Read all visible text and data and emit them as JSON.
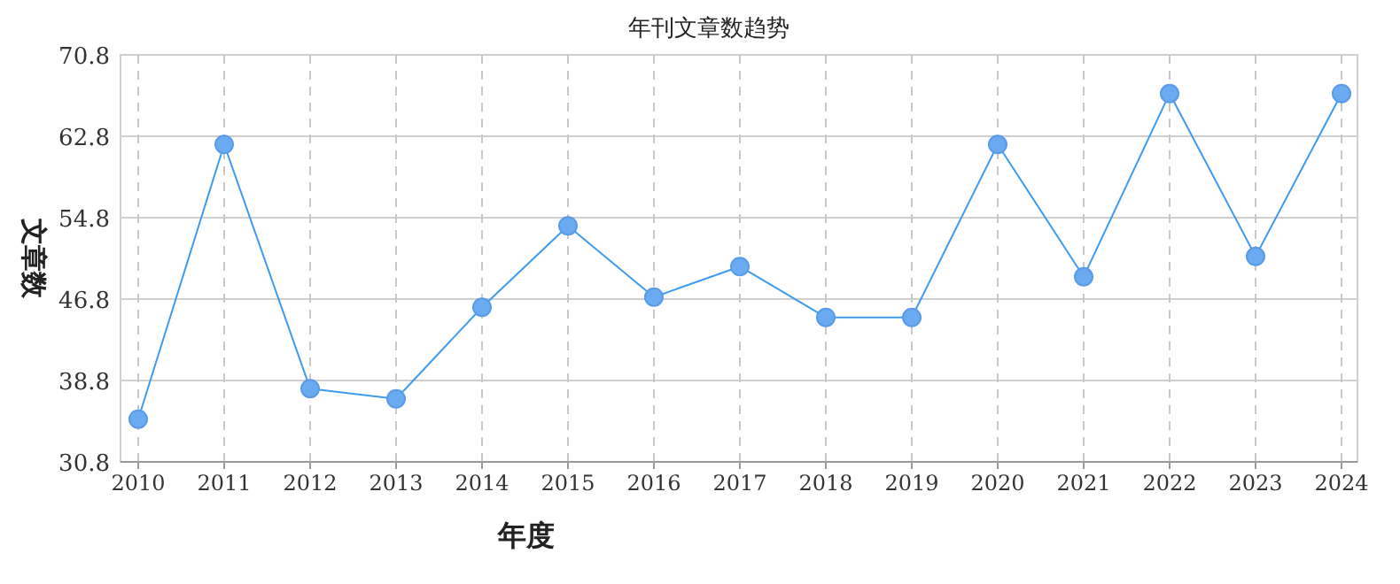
{
  "chart_data": {
    "type": "line",
    "title": "年刊文章数趋势",
    "xlabel": "年度",
    "ylabel": "文章数",
    "categories": [
      "2010",
      "2011",
      "2012",
      "2013",
      "2014",
      "2015",
      "2016",
      "2017",
      "2018",
      "2019",
      "2020",
      "2021",
      "2022",
      "2023",
      "2024"
    ],
    "series": [
      {
        "color": "#3d9cf0",
        "values": [
          35,
          62,
          38,
          37,
          46,
          54,
          47,
          50,
          45,
          45,
          62,
          49,
          67,
          51,
          67
        ]
      }
    ],
    "ylim": [
      30.8,
      70.8
    ],
    "yticks": [
      30.8,
      38.8,
      46.8,
      54.8,
      62.8,
      70.8
    ],
    "grid": true,
    "marker": "circle"
  }
}
